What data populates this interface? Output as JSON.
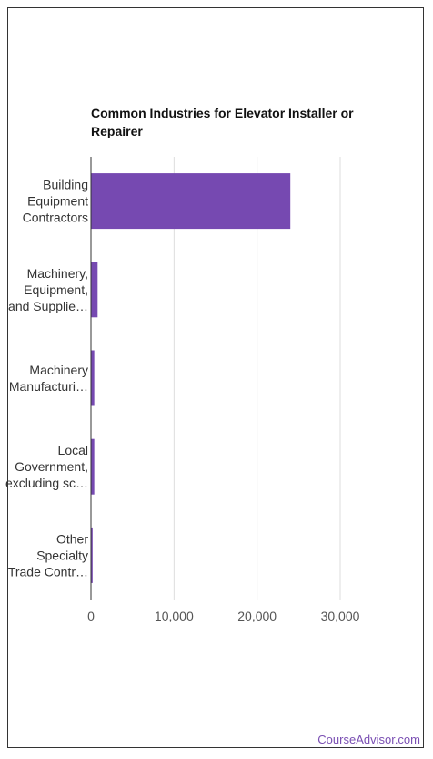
{
  "chart_data": {
    "type": "bar",
    "orientation": "horizontal",
    "title": "Common Industries for Elevator Installer or Repairer",
    "categories": [
      [
        "Building",
        "Equipment",
        "Contractors"
      ],
      [
        "Machinery,",
        "Equipment,",
        "and Supplie…"
      ],
      [
        "Machinery",
        "Manufacturi…"
      ],
      [
        "Local",
        "Government,",
        "excluding sc…"
      ],
      [
        "Other",
        "Specialty",
        "Trade Contr…"
      ]
    ],
    "values": [
      24000,
      800,
      400,
      400,
      200
    ],
    "xlim": [
      0,
      30000
    ],
    "ticks": [
      0,
      10000,
      20000,
      30000
    ],
    "tick_labels": [
      "0",
      "10,000",
      "20,000",
      "30,000"
    ],
    "grid": true,
    "bar_color": "#7649b1"
  },
  "footer": {
    "brand": "CourseAdvisor.com"
  }
}
